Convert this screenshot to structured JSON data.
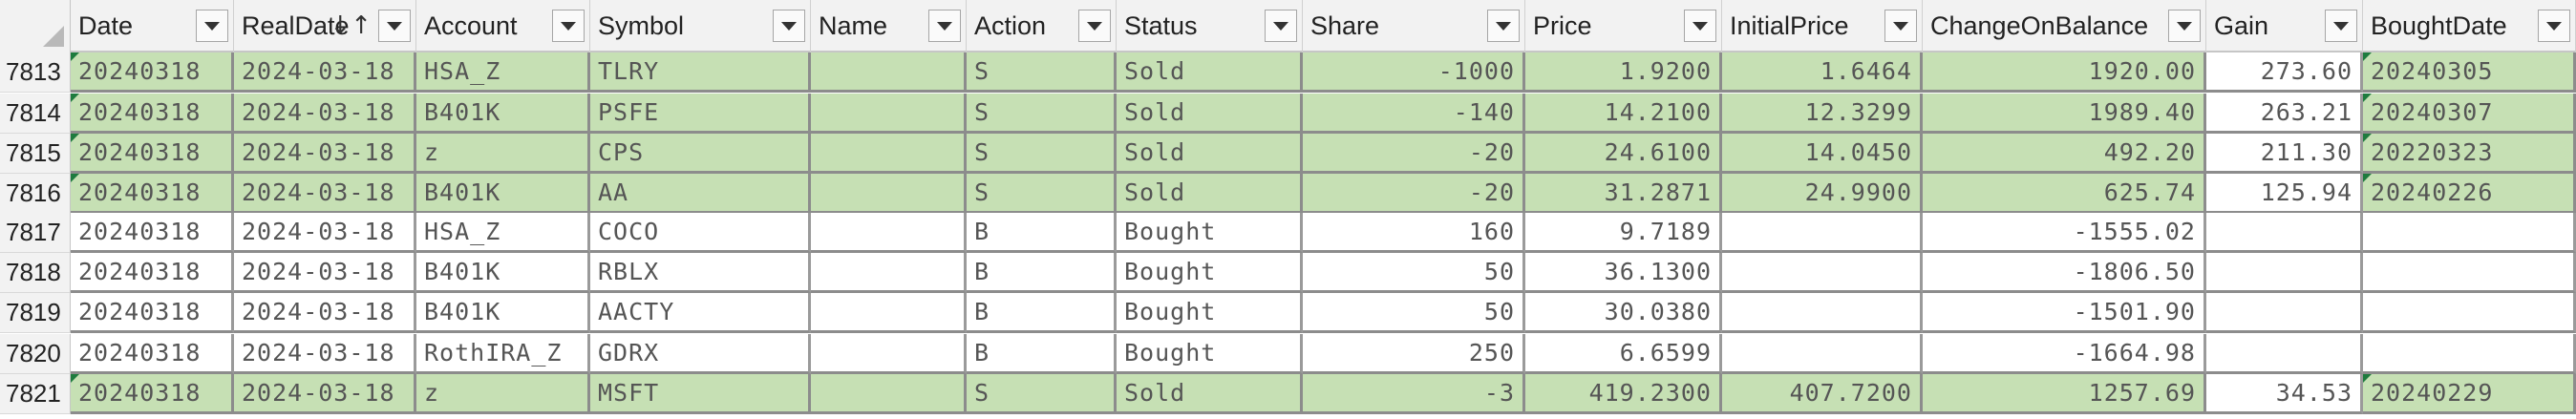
{
  "columns": [
    {
      "key": "Date",
      "label": "Date"
    },
    {
      "key": "RealDate",
      "label": "RealDate"
    },
    {
      "key": "Account",
      "label": "Account"
    },
    {
      "key": "Symbol",
      "label": "Symbol"
    },
    {
      "key": "Name",
      "label": "Name"
    },
    {
      "key": "Action",
      "label": "Action"
    },
    {
      "key": "Status",
      "label": "Status"
    },
    {
      "key": "Share",
      "label": "Share"
    },
    {
      "key": "Price",
      "label": "Price"
    },
    {
      "key": "InitialPrice",
      "label": "InitialPrice"
    },
    {
      "key": "ChangeOnBalance",
      "label": "ChangeOnBalance"
    },
    {
      "key": "Gain",
      "label": "Gain"
    },
    {
      "key": "BoughtDate",
      "label": "BoughtDate"
    }
  ],
  "sorted_column": "RealDate",
  "sort_indicator": "↓↑",
  "colors": {
    "sold_fill": "#c6e0b4",
    "bought_fill": "#ffffff",
    "error_marker": "#1e7b3e"
  },
  "rows": [
    {
      "num": "7813",
      "status": "Sold",
      "cells": [
        "20240318",
        "2024-03-18",
        "HSA_Z",
        "TLRY",
        "",
        "S",
        "Sold",
        "-1000",
        "1.9200",
        "1.6464",
        "1920.00",
        "273.60",
        "20240305"
      ],
      "flags": {
        "date": true,
        "bought": true
      }
    },
    {
      "num": "7814",
      "status": "Sold",
      "cells": [
        "20240318",
        "2024-03-18",
        "B401K",
        "PSFE",
        "",
        "S",
        "Sold",
        "-140",
        "14.2100",
        "12.3299",
        "1989.40",
        "263.21",
        "20240307"
      ],
      "flags": {
        "date": true,
        "bought": true
      }
    },
    {
      "num": "7815",
      "status": "Sold",
      "cells": [
        "20240318",
        "2024-03-18",
        "z",
        "CPS",
        "",
        "S",
        "Sold",
        "-20",
        "24.6100",
        "14.0450",
        "492.20",
        "211.30",
        "20220323"
      ],
      "flags": {
        "date": true,
        "bought": true
      }
    },
    {
      "num": "7816",
      "status": "Sold",
      "cells": [
        "20240318",
        "2024-03-18",
        "B401K",
        "AA",
        "",
        "S",
        "Sold",
        "-20",
        "31.2871",
        "24.9900",
        "625.74",
        "125.94",
        "20240226"
      ],
      "flags": {
        "date": true,
        "bought": true
      }
    },
    {
      "num": "7817",
      "status": "Bought",
      "cells": [
        "20240318",
        "2024-03-18",
        "HSA_Z",
        "COCO",
        "",
        "B",
        "Bought",
        "160",
        "9.7189",
        "",
        "-1555.02",
        "",
        ""
      ],
      "flags": {
        "date": false,
        "bought": false
      }
    },
    {
      "num": "7818",
      "status": "Bought",
      "cells": [
        "20240318",
        "2024-03-18",
        "B401K",
        "RBLX",
        "",
        "B",
        "Bought",
        "50",
        "36.1300",
        "",
        "-1806.50",
        "",
        ""
      ],
      "flags": {
        "date": false,
        "bought": false
      }
    },
    {
      "num": "7819",
      "status": "Bought",
      "cells": [
        "20240318",
        "2024-03-18",
        "B401K",
        "AACTY",
        "",
        "B",
        "Bought",
        "50",
        "30.0380",
        "",
        "-1501.90",
        "",
        ""
      ],
      "flags": {
        "date": false,
        "bought": false
      }
    },
    {
      "num": "7820",
      "status": "Bought",
      "cells": [
        "20240318",
        "2024-03-18",
        "RothIRA_Z",
        "GDRX",
        "",
        "B",
        "Bought",
        "250",
        "6.6599",
        "",
        "-1664.98",
        "",
        ""
      ],
      "flags": {
        "date": false,
        "bought": false
      }
    },
    {
      "num": "7821",
      "status": "Sold",
      "cells": [
        "20240318",
        "2024-03-18",
        "z",
        "MSFT",
        "",
        "S",
        "Sold",
        "-3",
        "419.2300",
        "407.7200",
        "1257.69",
        "34.53",
        "20240229"
      ],
      "flags": {
        "date": true,
        "bought": true
      }
    }
  ]
}
